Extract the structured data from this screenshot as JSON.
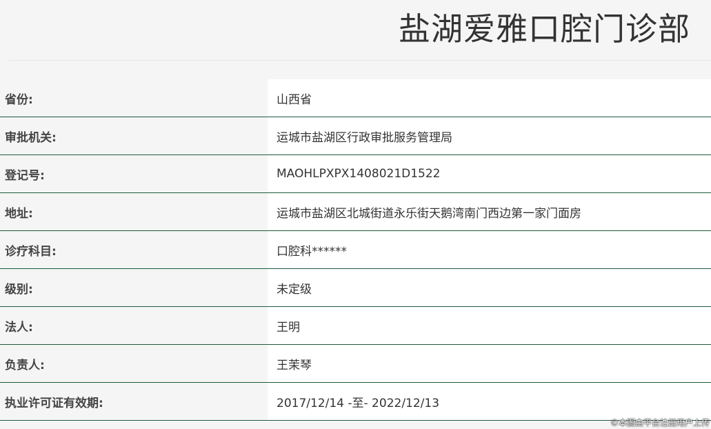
{
  "title": "盐湖爱雅口腔门诊部",
  "rows": [
    {
      "label": "省份:",
      "value": "山西省"
    },
    {
      "label": "审批机关:",
      "value": "运城市盐湖区行政审批服务管理局"
    },
    {
      "label": "登记号:",
      "value": "MAOHLPXPX1408021D1522"
    },
    {
      "label": "地址:",
      "value": "运城市盐湖区北城街道永乐街天鹅湾南门西边第一家门面房"
    },
    {
      "label": "诊疗科目:",
      "value": "口腔科******"
    },
    {
      "label": "级别:",
      "value": "未定级"
    },
    {
      "label": "法人:",
      "value": "王明"
    },
    {
      "label": "负责人:",
      "value": "王茉琴"
    },
    {
      "label": "执业许可证有效期:",
      "value": "2017/12/14 -至- 2022/12/13"
    }
  ],
  "credit": "©本图由平台注册用户上传"
}
